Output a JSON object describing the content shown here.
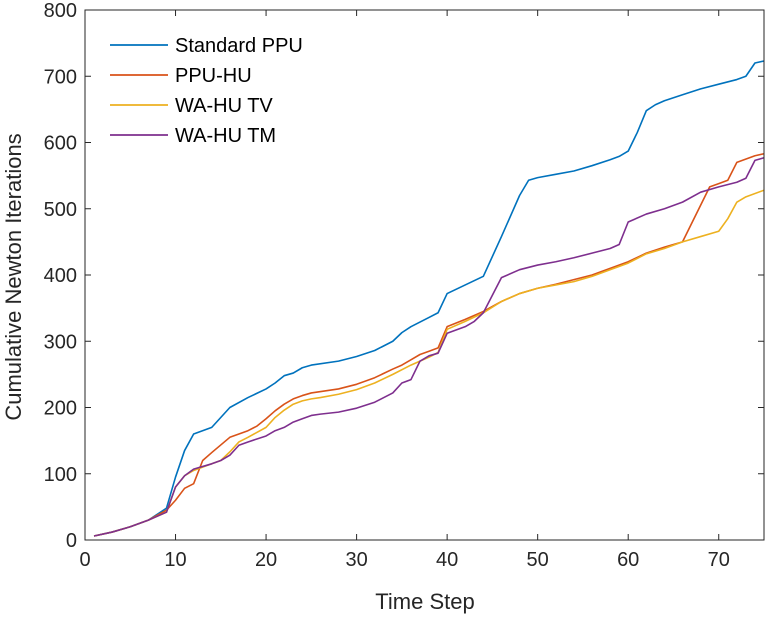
{
  "chart_data": {
    "type": "line",
    "title": "",
    "xlabel": "Time Step",
    "ylabel": "Cumulative Newton Iterations",
    "xlim": [
      0,
      75
    ],
    "ylim": [
      0,
      800
    ],
    "xticks": [
      0,
      10,
      20,
      30,
      40,
      50,
      60,
      70
    ],
    "yticks": [
      0,
      100,
      200,
      300,
      400,
      500,
      600,
      700,
      800
    ],
    "grid": false,
    "legend_position": "top-left",
    "series": [
      {
        "name": "Standard PPU",
        "color": "#0072BD",
        "x": [
          1,
          3,
          5,
          7,
          9,
          10,
          11,
          12,
          14,
          16,
          18,
          20,
          21,
          22,
          23,
          24,
          25,
          28,
          30,
          32,
          34,
          35,
          36,
          38,
          39,
          40,
          42,
          44,
          46,
          48,
          49,
          50,
          52,
          54,
          56,
          58,
          59,
          60,
          61,
          62,
          63,
          64,
          66,
          68,
          70,
          72,
          73,
          74,
          75
        ],
        "y": [
          6,
          12,
          20,
          30,
          48,
          95,
          135,
          160,
          170,
          200,
          215,
          228,
          237,
          248,
          252,
          260,
          264,
          270,
          277,
          286,
          300,
          313,
          322,
          336,
          343,
          372,
          385,
          398,
          458,
          520,
          543,
          547,
          552,
          557,
          565,
          574,
          579,
          587,
          615,
          648,
          657,
          663,
          672,
          681,
          688,
          695,
          700,
          720,
          723
        ]
      },
      {
        "name": "PPU-HU",
        "color": "#D95319",
        "x": [
          1,
          3,
          5,
          7,
          9,
          10,
          11,
          12,
          13,
          14,
          16,
          18,
          19,
          20,
          21,
          22,
          23,
          24,
          25,
          28,
          30,
          32,
          34,
          35,
          36,
          37,
          38,
          39,
          40,
          42,
          44,
          46,
          48,
          50,
          52,
          54,
          56,
          58,
          60,
          62,
          64,
          66,
          69,
          70,
          71,
          72,
          74,
          75
        ],
        "y": [
          6,
          12,
          20,
          30,
          45,
          60,
          78,
          85,
          120,
          132,
          155,
          165,
          172,
          183,
          195,
          205,
          213,
          218,
          222,
          228,
          235,
          245,
          258,
          264,
          272,
          280,
          285,
          290,
          322,
          333,
          345,
          360,
          372,
          380,
          386,
          393,
          400,
          410,
          420,
          433,
          442,
          450,
          533,
          538,
          543,
          570,
          580,
          583
        ]
      },
      {
        "name": "WA-HU TV",
        "color": "#EDB120",
        "x": [
          1,
          3,
          5,
          7,
          9,
          10,
          11,
          12,
          13,
          14,
          15,
          16,
          17,
          18,
          20,
          21,
          22,
          23,
          24,
          25,
          26,
          28,
          30,
          32,
          34,
          36,
          38,
          39,
          40,
          42,
          44,
          46,
          48,
          50,
          52,
          54,
          56,
          58,
          60,
          62,
          64,
          66,
          68,
          70,
          71,
          72,
          73,
          75
        ],
        "y": [
          6,
          12,
          20,
          30,
          42,
          80,
          97,
          105,
          110,
          115,
          120,
          133,
          148,
          155,
          170,
          185,
          196,
          205,
          210,
          213,
          215,
          220,
          227,
          237,
          250,
          264,
          276,
          283,
          318,
          330,
          343,
          360,
          372,
          380,
          385,
          390,
          398,
          408,
          418,
          432,
          440,
          450,
          458,
          466,
          485,
          510,
          518,
          528
        ]
      },
      {
        "name": "WA-HU TM",
        "color": "#7E2F8E",
        "x": [
          1,
          3,
          5,
          7,
          9,
          10,
          11,
          12,
          14,
          15,
          16,
          17,
          18,
          20,
          21,
          22,
          23,
          24,
          25,
          26,
          28,
          30,
          32,
          34,
          35,
          36,
          37,
          38,
          39,
          40,
          42,
          43,
          44,
          46,
          48,
          50,
          52,
          54,
          56,
          58,
          59,
          60,
          62,
          64,
          66,
          68,
          70,
          72,
          73,
          74,
          75
        ],
        "y": [
          6,
          12,
          20,
          30,
          42,
          80,
          97,
          107,
          115,
          120,
          128,
          143,
          148,
          157,
          165,
          170,
          178,
          183,
          188,
          190,
          193,
          199,
          208,
          222,
          237,
          242,
          270,
          278,
          282,
          312,
          322,
          330,
          343,
          396,
          408,
          415,
          420,
          426,
          433,
          440,
          446,
          480,
          492,
          500,
          510,
          525,
          533,
          540,
          546,
          573,
          577
        ]
      }
    ]
  }
}
